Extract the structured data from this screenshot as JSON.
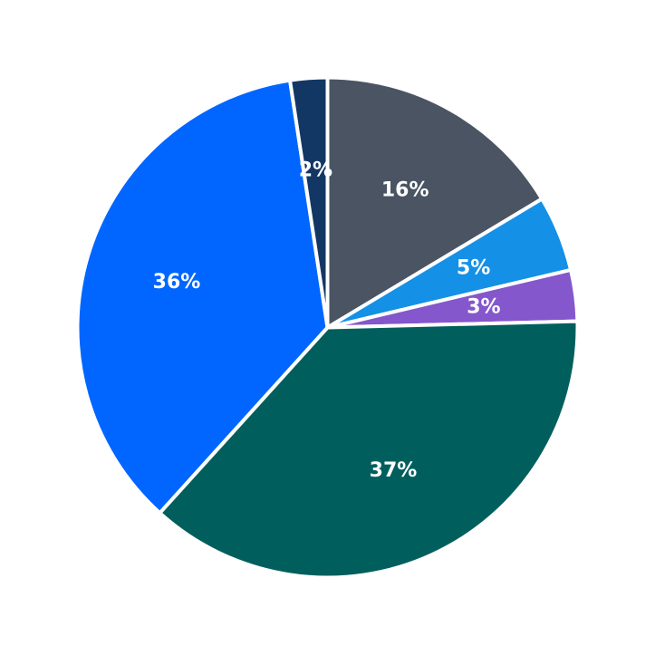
{
  "chart_data": {
    "type": "pie",
    "title": "",
    "start_angle_deg": 90,
    "direction": "clockwise",
    "slices": [
      {
        "value": 16.4,
        "label": "16%",
        "color": "#4a5462"
      },
      {
        "value": 4.9,
        "label": "5%",
        "color": "#1490e6"
      },
      {
        "value": 3.3,
        "label": "3%",
        "color": "#8457cc"
      },
      {
        "value": 37.1,
        "label": "37%",
        "color": "#005f5c"
      },
      {
        "value": 35.9,
        "label": "36%",
        "color": "#0066ff"
      },
      {
        "value": 2.4,
        "label": "2%",
        "color": "#133764"
      }
    ],
    "legend": "none"
  }
}
